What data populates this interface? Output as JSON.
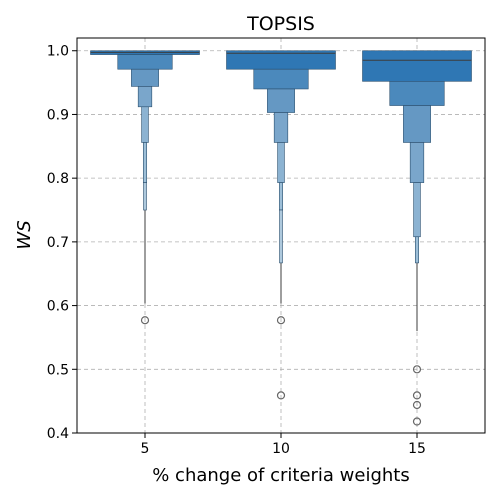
{
  "chart_data": {
    "type": "boxenplot",
    "title": "TOPSIS",
    "xlabel": "% change of criteria weights",
    "ylabel": "WS",
    "ylim": [
      0.4,
      1.02
    ],
    "yticks": [
      "0.4",
      "0.5",
      "0.6",
      "0.7",
      "0.8",
      "0.9",
      "1.0"
    ],
    "categories": [
      "5",
      "10",
      "15"
    ],
    "grid": "dashed, both axes",
    "color": "#2f77b4",
    "groups": [
      {
        "category": "5",
        "median": 0.9975,
        "levels": [
          {
            "low": 0.994,
            "high": 1.0
          },
          {
            "low": 0.971,
            "high": 0.994
          },
          {
            "low": 0.944,
            "high": 0.971
          },
          {
            "low": 0.912,
            "high": 0.944
          },
          {
            "low": 0.856,
            "high": 0.912
          },
          {
            "low": 0.793,
            "high": 0.856
          },
          {
            "low": 0.75,
            "high": 0.793
          }
        ],
        "whisker_low": 0.603,
        "outliers": [
          0.577
        ]
      },
      {
        "category": "10",
        "median": 0.996,
        "levels": [
          {
            "low": 0.971,
            "high": 1.0
          },
          {
            "low": 0.94,
            "high": 0.971
          },
          {
            "low": 0.903,
            "high": 0.94
          },
          {
            "low": 0.856,
            "high": 0.903
          },
          {
            "low": 0.793,
            "high": 0.856
          },
          {
            "low": 0.75,
            "high": 0.793
          },
          {
            "low": 0.667,
            "high": 0.75
          }
        ],
        "whisker_low": 0.603,
        "outliers": [
          0.577,
          0.459
        ]
      },
      {
        "category": "15",
        "median": 0.985,
        "levels": [
          {
            "low": 0.952,
            "high": 1.0
          },
          {
            "low": 0.914,
            "high": 0.952
          },
          {
            "low": 0.856,
            "high": 0.914
          },
          {
            "low": 0.793,
            "high": 0.856
          },
          {
            "low": 0.708,
            "high": 0.793
          },
          {
            "low": 0.667,
            "high": 0.708
          }
        ],
        "whisker_low": 0.56,
        "outliers": [
          0.5,
          0.459,
          0.444,
          0.418
        ]
      }
    ]
  }
}
